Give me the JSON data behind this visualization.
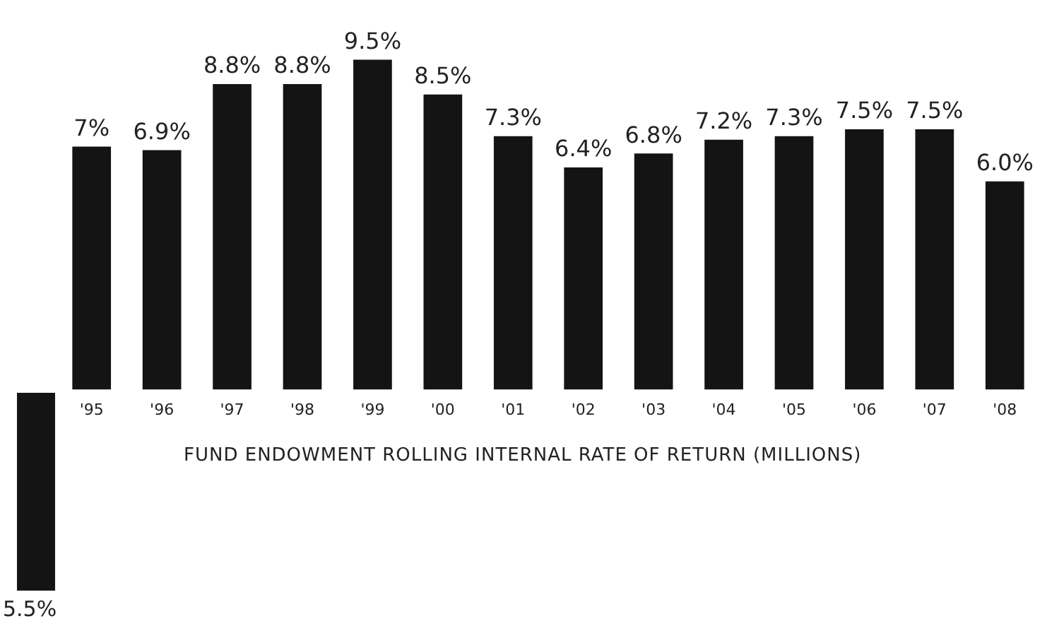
{
  "chart_data": {
    "type": "bar",
    "title": "FUND ENDOWMENT ROLLING INTERNAL RATE OF RETURN (MILLIONS)",
    "categories": [
      "'95",
      "'96",
      "'97",
      "'98",
      "'99",
      "'00",
      "'01",
      "'02",
      "'03",
      "'04",
      "'05",
      "'06",
      "'07",
      "'08"
    ],
    "values": [
      7,
      6.9,
      8.8,
      8.8,
      9.5,
      8.5,
      7.3,
      6.4,
      6.8,
      7.2,
      7.3,
      7.5,
      7.5,
      6.0
    ],
    "value_labels": [
      "7%",
      "6.9%",
      "8.8%",
      "8.8%",
      "9.5%",
      "8.5%",
      "7.3%",
      "6.4%",
      "6.8%",
      "7.2%",
      "7.3%",
      "7.5%",
      "7.5%",
      "6.0%"
    ],
    "color": "#141414",
    "grid": false,
    "legend": false,
    "annotations": [
      "5.5%"
    ]
  }
}
